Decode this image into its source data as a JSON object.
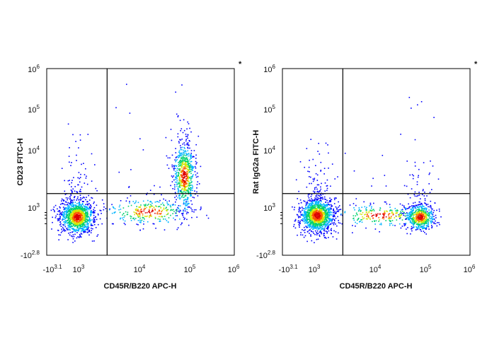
{
  "chart_data": [
    {
      "type": "scatter",
      "title": "",
      "xlabel": "CD45R/B220 APC-H",
      "ylabel": "CD23 FITC-H",
      "corner_mark": "*",
      "x_scale": "biexponential",
      "y_scale": "biexponential",
      "xlim": [
        -1259,
        1000000
      ],
      "ylim": [
        -631,
        1000000
      ],
      "x_ticks": [
        {
          "base": "-10",
          "exp": "3.1"
        },
        {
          "base": "10",
          "exp": "3"
        },
        {
          "base": "10",
          "exp": "4"
        },
        {
          "base": "10",
          "exp": "5"
        },
        {
          "base": "10",
          "exp": "6"
        }
      ],
      "y_ticks": [
        {
          "base": "-10",
          "exp": "2.8"
        },
        {
          "base": "10",
          "exp": "3"
        },
        {
          "base": "10",
          "exp": "4"
        },
        {
          "base": "10",
          "exp": "5"
        },
        {
          "base": "10",
          "exp": "6"
        }
      ],
      "gates": {
        "x": 3000,
        "y": 2000
      },
      "populations": [
        {
          "name": "",
          "x": 700,
          "y": 500,
          "weight": 0.55
        },
        {
          "name": "",
          "x": 75000,
          "y": 4000,
          "weight": 0.3
        },
        {
          "name": "",
          "x": 15000,
          "y": 900,
          "weight": 0.15
        }
      ],
      "point_colors": [
        "#0000ff",
        "#00b4ff",
        "#00d26e",
        "#d2e600",
        "#ff5a00",
        "#dc0000"
      ]
    },
    {
      "type": "scatter",
      "title": "",
      "xlabel": "CD45R/B220 APC-H",
      "ylabel": "Rat IgG2a FITC-H",
      "corner_mark": "*",
      "x_scale": "biexponential",
      "y_scale": "biexponential",
      "xlim": [
        -1259,
        1000000
      ],
      "ylim": [
        -631,
        1000000
      ],
      "x_ticks": [
        {
          "base": "-10",
          "exp": "3.1"
        },
        {
          "base": "10",
          "exp": "3"
        },
        {
          "base": "10",
          "exp": "4"
        },
        {
          "base": "10",
          "exp": "5"
        },
        {
          "base": "10",
          "exp": "6"
        }
      ],
      "y_ticks": [
        {
          "base": "-10",
          "exp": "2.8"
        },
        {
          "base": "10",
          "exp": "3"
        },
        {
          "base": "10",
          "exp": "4"
        },
        {
          "base": "10",
          "exp": "5"
        },
        {
          "base": "10",
          "exp": "6"
        }
      ],
      "gates": {
        "x": 3000,
        "y": 2000
      },
      "populations": [
        {
          "name": "",
          "x": 1100,
          "y": 600,
          "weight": 0.6
        },
        {
          "name": "",
          "x": 75000,
          "y": 500,
          "weight": 0.28
        },
        {
          "name": "",
          "x": 12000,
          "y": 600,
          "weight": 0.12
        }
      ],
      "point_colors": [
        "#0000ff",
        "#00b4ff",
        "#00d26e",
        "#d2e600",
        "#ff5a00",
        "#dc0000"
      ]
    }
  ]
}
